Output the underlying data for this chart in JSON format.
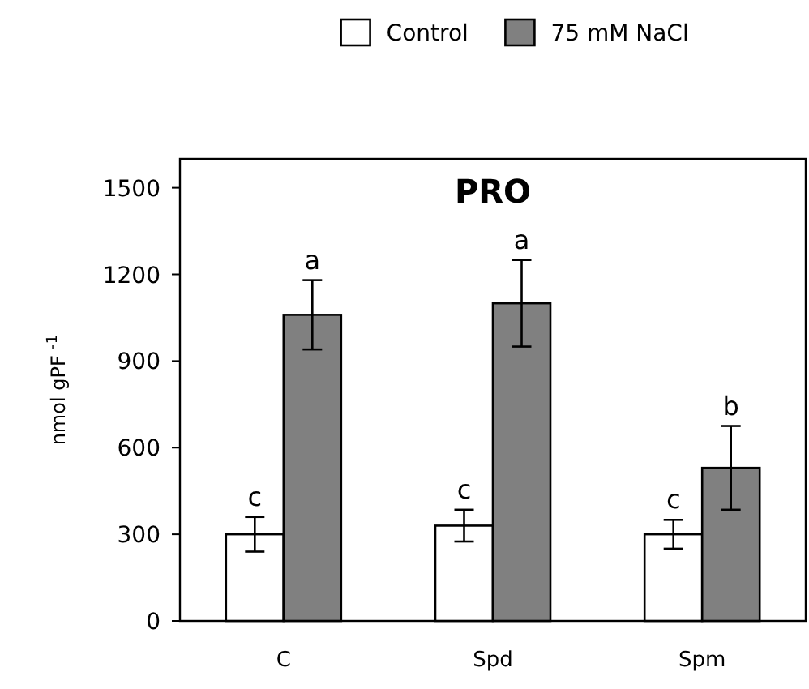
{
  "chart_data": {
    "type": "bar",
    "title": "PRO",
    "ylabel": "nmol gPF $^{-1}$",
    "categories": [
      "C",
      "Spd",
      "Spm"
    ],
    "series": [
      {
        "name": "Control",
        "color": "#ffffff",
        "values": [
          300,
          330,
          300
        ],
        "errors": [
          60,
          55,
          50
        ]
      },
      {
        "name": "75 mM NaCl",
        "color": "#808080",
        "values": [
          1060,
          1100,
          530
        ],
        "errors": [
          120,
          150,
          145
        ]
      }
    ],
    "ylim": [
      0,
      1600
    ],
    "yticks": [
      0,
      300,
      600,
      900,
      1200,
      1500
    ],
    "legend": "top",
    "grid": false,
    "annotations": [
      {
        "text": "c",
        "x": "C",
        "y": 300
      },
      {
        "text": "a",
        "x": "C",
        "y": 1060
      },
      {
        "text": "c",
        "x": "Spd",
        "y": 330
      },
      {
        "text": "a",
        "x": "Spd",
        "y": 1100
      },
      {
        "text": "c",
        "x": "Spm",
        "y": 300
      },
      {
        "text": "b",
        "x": "Spm",
        "y": 530
      }
    ]
  }
}
